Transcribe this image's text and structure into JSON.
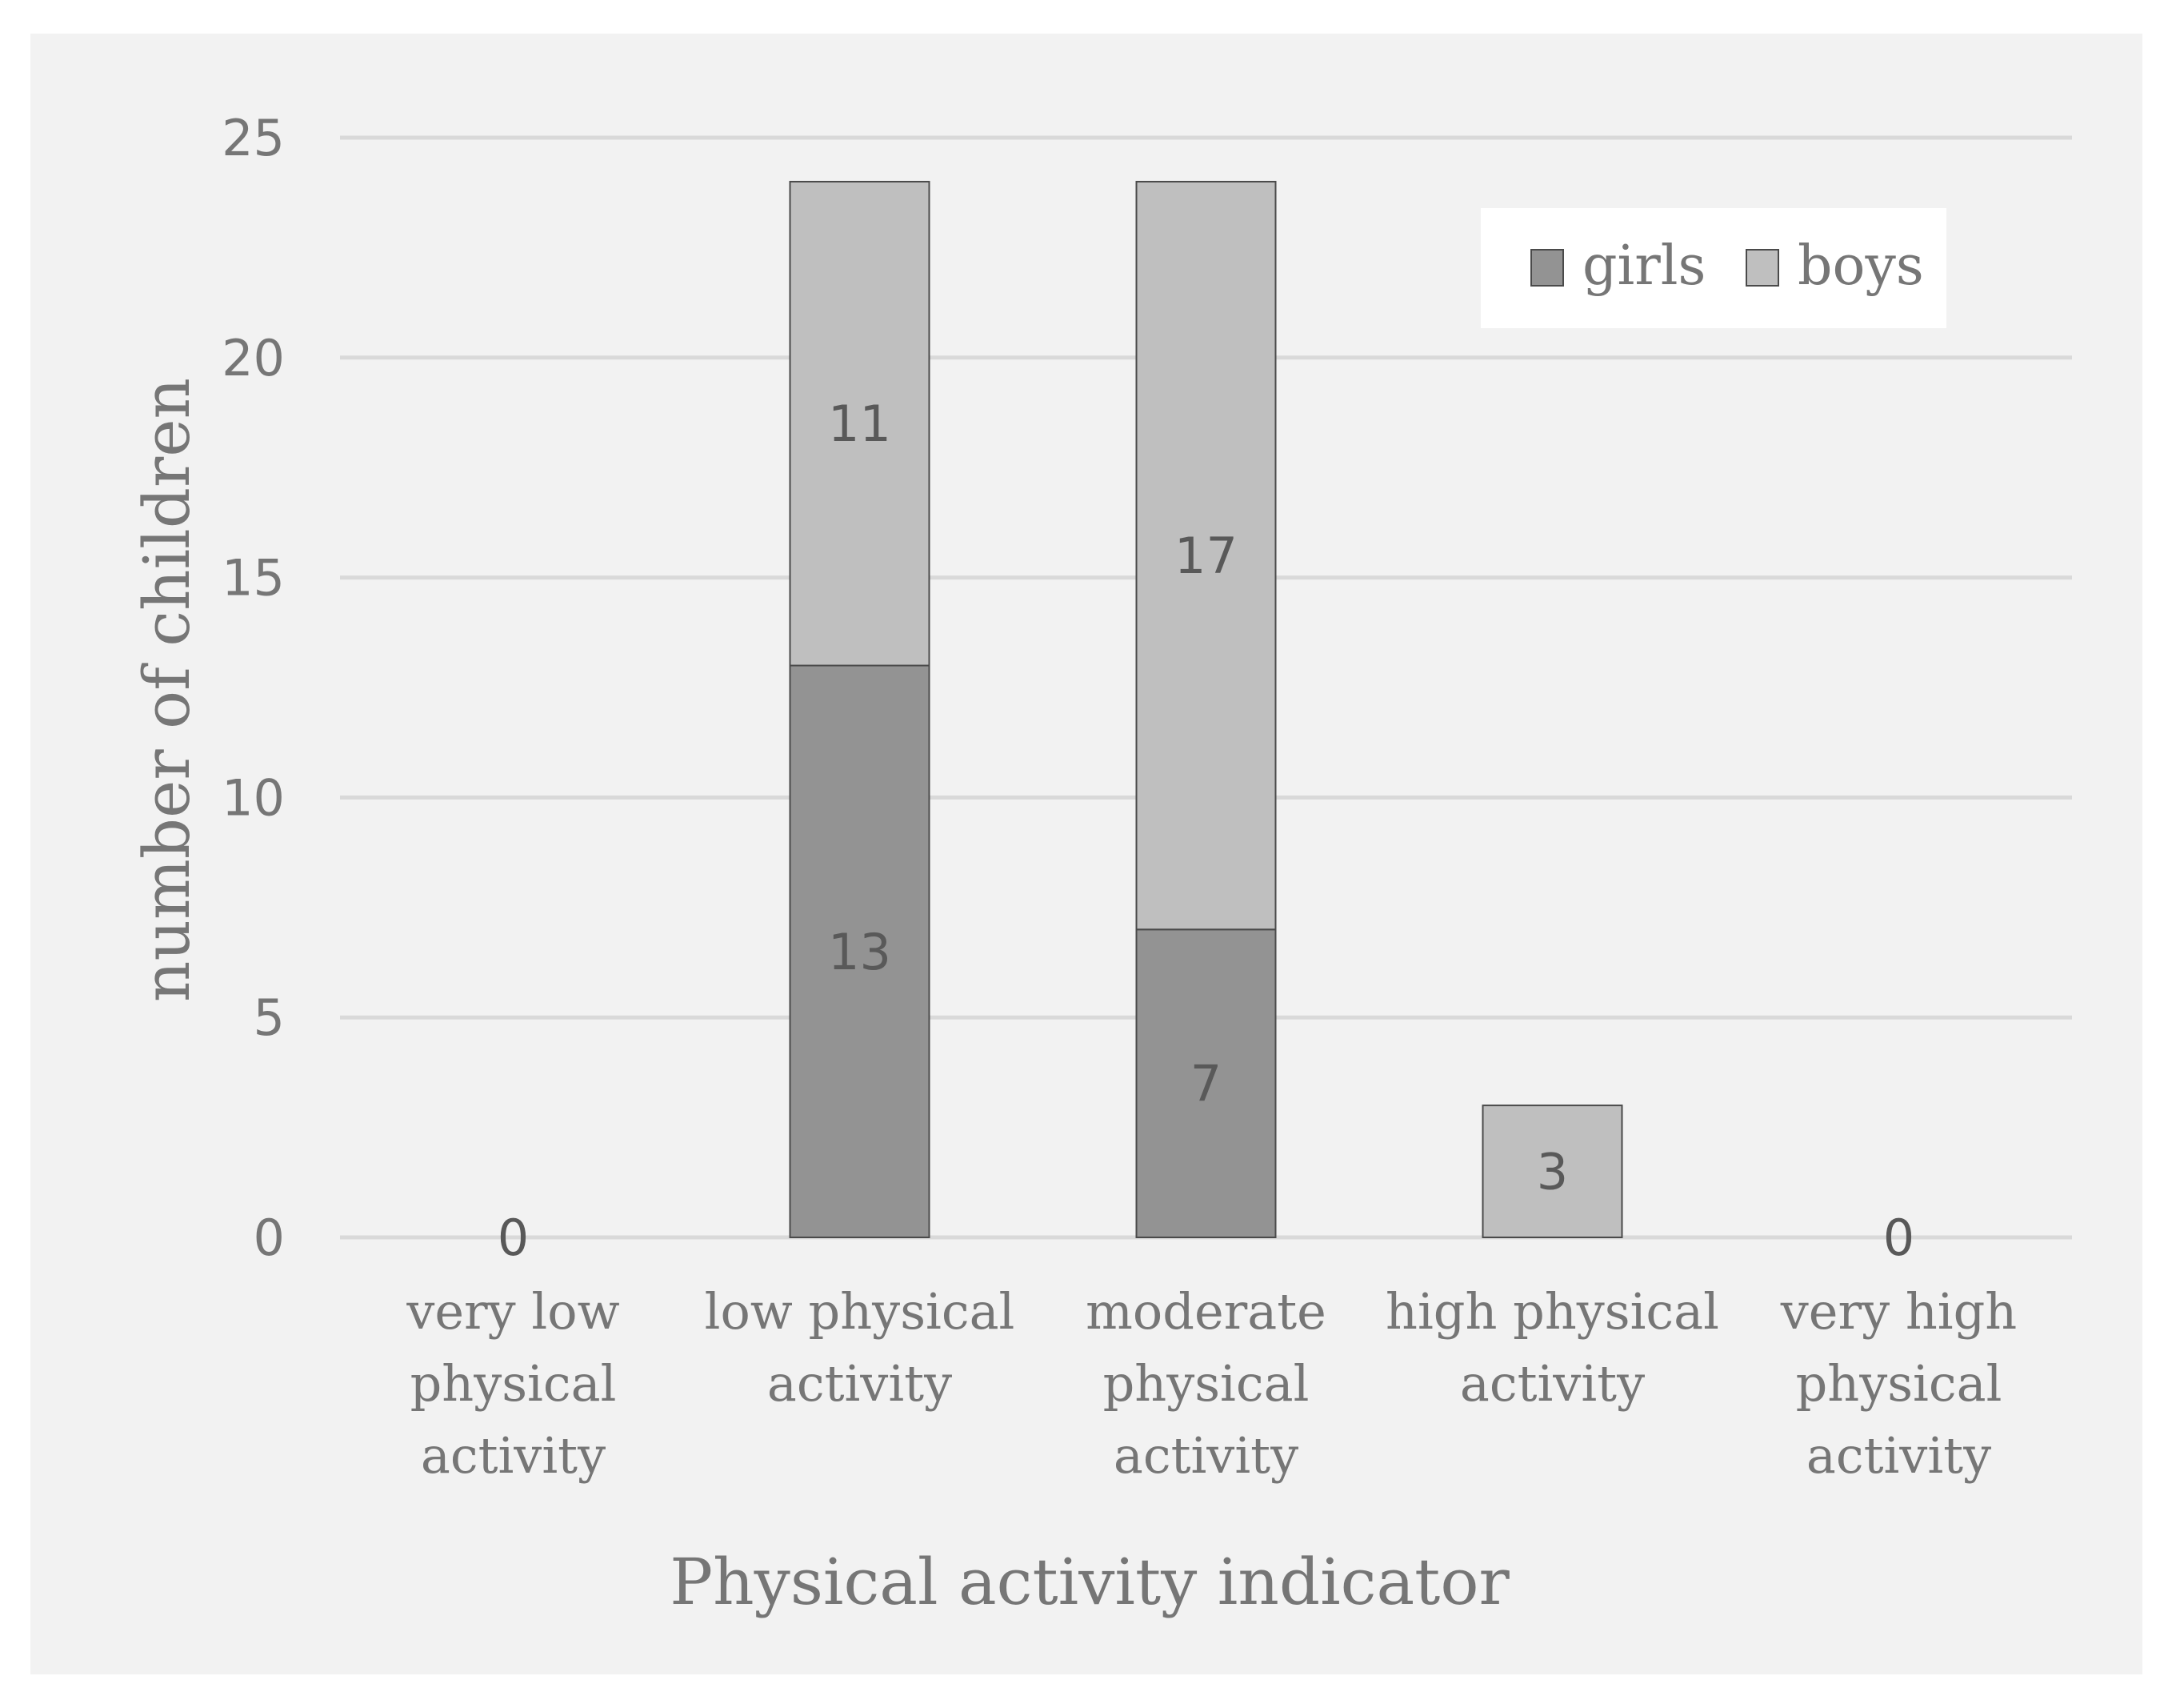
{
  "chart_data": {
    "type": "bar",
    "stacked": true,
    "categories": [
      [
        "very low",
        "physical",
        "activity"
      ],
      [
        "low physical",
        "activity"
      ],
      [
        "moderate",
        "physical",
        "activity"
      ],
      [
        "high physical",
        "activity"
      ],
      [
        "very high",
        "physical",
        "activity"
      ]
    ],
    "series": [
      {
        "name": "girls",
        "values": [
          0,
          13,
          7,
          0,
          0
        ],
        "color": "#939393"
      },
      {
        "name": "boys",
        "values": [
          0,
          11,
          17,
          3,
          0
        ],
        "color": "#bfbfbf"
      }
    ],
    "data_labels": [
      {
        "category_index": 0,
        "series": "boys",
        "text": "0"
      },
      {
        "category_index": 1,
        "series": "girls",
        "text": "13"
      },
      {
        "category_index": 1,
        "series": "boys",
        "text": "11"
      },
      {
        "category_index": 2,
        "series": "girls",
        "text": "7"
      },
      {
        "category_index": 2,
        "series": "boys",
        "text": "17"
      },
      {
        "category_index": 3,
        "series": "boys",
        "text": "3"
      },
      {
        "category_index": 4,
        "series": "boys",
        "text": "0"
      }
    ],
    "xlabel": "Physical activity indicator",
    "ylabel": "number of children",
    "ylim": [
      0,
      25
    ],
    "yticks": [
      0,
      5,
      10,
      15,
      20,
      25
    ],
    "grid": true,
    "legend_position": "top-right",
    "background": "#f2f2f2",
    "gridline_color": "#d9d9d9",
    "legend_background": "#ffffff"
  }
}
